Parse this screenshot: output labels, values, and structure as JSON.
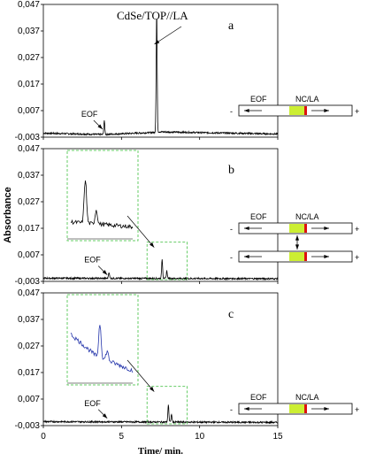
{
  "colors": {
    "trace": "#000000",
    "inset_blue": "#2233aa",
    "dash_box": "#66cc66",
    "zone_yellow": "#ccee33",
    "band_red": "#dd1111",
    "axis": "#000000"
  },
  "chart_data": {
    "type": "line",
    "xlabel": "Time/ min.",
    "ylabel": "Absorbance",
    "xlim": [
      0,
      15
    ],
    "ylim": [
      -0.003,
      0.047
    ],
    "x_ticks": [
      "0",
      "5",
      "10",
      "15"
    ],
    "y_ticks": [
      "-0,003",
      "0,007",
      "0,017",
      "0,027",
      "0,037",
      "0,047"
    ],
    "grid": false,
    "panels": [
      {
        "letter": "a",
        "annotation": "CdSe/TOP//LA",
        "eof_label": "EOF",
        "eof_time": 3.9,
        "peaks": [
          {
            "x": 3.9,
            "y": 0.003
          },
          {
            "x": 7.25,
            "y": 0.0435
          }
        ],
        "baseline": [
          {
            "x": 0.0,
            "y": -0.0015
          },
          {
            "x": 3.85,
            "y": -0.002
          },
          {
            "x": 7.15,
            "y": -0.0012
          },
          {
            "x": 7.4,
            "y": -0.001
          },
          {
            "x": 15.0,
            "y": -0.0018
          }
        ],
        "schematic": {
          "left": "EOF",
          "right": "NC/LA",
          "minus": "-",
          "plus": "+"
        }
      },
      {
        "letter": "b",
        "eof_label": "EOF",
        "eof_time": 4.2,
        "peaks": [
          {
            "x": 4.2,
            "y": 0.0005
          },
          {
            "x": 7.6,
            "y": 0.0055
          },
          {
            "x": 7.9,
            "y": 0.001
          }
        ],
        "baseline": [
          {
            "x": 0.0,
            "y": -0.0018
          },
          {
            "x": 15.0,
            "y": -0.002
          }
        ],
        "has_inset": true,
        "schematic": {
          "left": "EOF",
          "right": "NC/LA",
          "minus": "-",
          "plus": "+"
        }
      },
      {
        "letter": "c",
        "eof_label": "EOF",
        "eof_time": 4.2,
        "peaks": [
          {
            "x": 8.0,
            "y": 0.005
          },
          {
            "x": 8.2,
            "y": 0.0012
          }
        ],
        "baseline": [
          {
            "x": 0.0,
            "y": -0.0015
          },
          {
            "x": 15.0,
            "y": -0.0018
          }
        ],
        "has_inset": true,
        "schematic": {
          "left": "EOF",
          "right": "NC/LA",
          "minus": "-",
          "plus": "+"
        }
      }
    ]
  }
}
